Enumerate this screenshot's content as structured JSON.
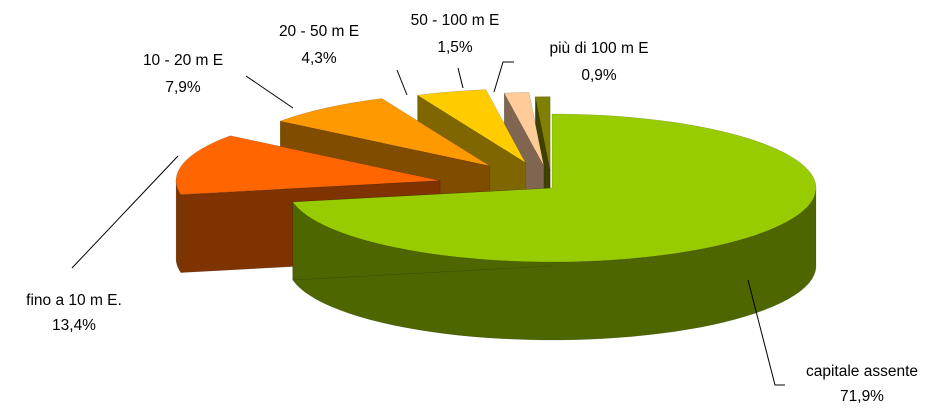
{
  "chart_data": {
    "type": "pie",
    "title": "",
    "style": "3d-exploded",
    "slices": [
      {
        "label": "capitale assente",
        "value": 71.9,
        "value_text": "71,9%",
        "top": "#99CC00",
        "side": "#4D6600"
      },
      {
        "label": "fino a 10 m E.",
        "value": 13.4,
        "value_text": "13,4%",
        "top": "#FF6600",
        "side": "#7F3300"
      },
      {
        "label": "10 - 20 m E",
        "value": 7.9,
        "value_text": "7,9%",
        "top": "#FF9900",
        "side": "#7F4C00"
      },
      {
        "label": "20 - 50 m E",
        "value": 4.3,
        "value_text": "4,3%",
        "top": "#FFCC00",
        "side": "#806600"
      },
      {
        "label": "50 - 100 m E",
        "value": 1.5,
        "value_text": "1,5%",
        "top": "#FFCC99",
        "side": "#806650"
      },
      {
        "label": "più di 100 m E",
        "value": 0.9,
        "value_text": "0,9%",
        "top": "#808000",
        "side": "#404000"
      }
    ]
  }
}
